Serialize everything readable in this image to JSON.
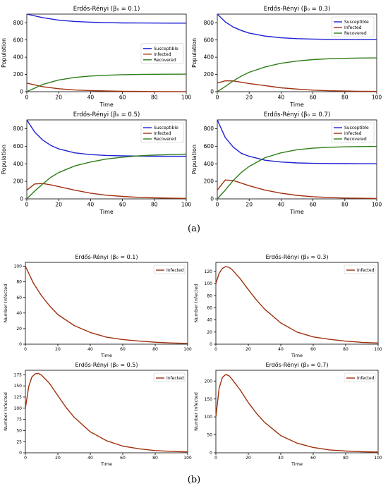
{
  "panel_labels": {
    "a": "(a)",
    "b": "(b)"
  },
  "colors": {
    "susceptible": "#1f1fd6",
    "infected": "#a0300e",
    "recovered": "#2e7d1a",
    "axis": "#000000"
  },
  "chart_data": [
    {
      "type": "line",
      "panel": "a",
      "title": "Erdős-Rényi (β₀ = 0.1)",
      "xlabel": "Time",
      "ylabel": "Population",
      "xlim": [
        0,
        100
      ],
      "ylim": [
        0,
        900
      ],
      "xticks": [
        0,
        20,
        40,
        60,
        80,
        100
      ],
      "yticks": [
        0,
        200,
        400,
        600,
        800
      ],
      "legend": "right",
      "x": [
        0,
        10,
        20,
        30,
        40,
        50,
        60,
        70,
        80,
        90,
        100
      ],
      "series": [
        {
          "name": "Susceptible",
          "color": "#1f1fd6",
          "values": [
            900,
            858,
            830,
            815,
            806,
            801,
            798,
            797,
            796,
            795,
            795
          ]
        },
        {
          "name": "Infected",
          "color": "#a0300e",
          "values": [
            100,
            58,
            34,
            20,
            12,
            8,
            5,
            3,
            2,
            1,
            1
          ]
        },
        {
          "name": "Recovered",
          "color": "#2e7d1a",
          "values": [
            0,
            84,
            136,
            165,
            182,
            191,
            197,
            200,
            202,
            203,
            204
          ]
        }
      ]
    },
    {
      "type": "line",
      "panel": "a",
      "title": "Erdős-Rényi (β₀ = 0.3)",
      "xlabel": "Time",
      "ylabel": "Population",
      "xlim": [
        0,
        100
      ],
      "ylim": [
        0,
        900
      ],
      "xticks": [
        0,
        20,
        40,
        60,
        80,
        100
      ],
      "yticks": [
        0,
        200,
        400,
        600,
        800
      ],
      "legend": "top-right",
      "x": [
        0,
        5,
        10,
        15,
        20,
        30,
        40,
        50,
        60,
        70,
        80,
        90,
        100
      ],
      "series": [
        {
          "name": "Susceptible",
          "color": "#1f1fd6",
          "values": [
            900,
            810,
            750,
            710,
            680,
            645,
            625,
            615,
            610,
            607,
            606,
            605,
            605
          ]
        },
        {
          "name": "Infected",
          "color": "#a0300e",
          "values": [
            100,
            126,
            125,
            110,
            95,
            70,
            45,
            30,
            18,
            11,
            7,
            4,
            3
          ]
        },
        {
          "name": "Recovered",
          "color": "#2e7d1a",
          "values": [
            0,
            60,
            125,
            180,
            225,
            287,
            330,
            355,
            372,
            382,
            387,
            390,
            392
          ]
        }
      ]
    },
    {
      "type": "line",
      "panel": "a",
      "title": "Erdős-Rényi (β₀ = 0.5)",
      "xlabel": "Time",
      "ylabel": "Population",
      "xlim": [
        0,
        100
      ],
      "ylim": [
        0,
        900
      ],
      "xticks": [
        0,
        20,
        40,
        60,
        80,
        100
      ],
      "yticks": [
        0,
        200,
        400,
        600,
        800
      ],
      "legend": "top-right",
      "x": [
        0,
        5,
        10,
        15,
        20,
        30,
        40,
        50,
        60,
        70,
        80,
        90,
        100
      ],
      "series": [
        {
          "name": "Susceptible",
          "color": "#1f1fd6",
          "values": [
            900,
            760,
            670,
            610,
            570,
            525,
            505,
            495,
            490,
            488,
            486,
            485,
            485
          ]
        },
        {
          "name": "Infected",
          "color": "#a0300e",
          "values": [
            100,
            170,
            175,
            160,
            140,
            100,
            65,
            42,
            28,
            18,
            12,
            8,
            6
          ]
        },
        {
          "name": "Recovered",
          "color": "#2e7d1a",
          "values": [
            0,
            90,
            170,
            245,
            300,
            375,
            420,
            455,
            475,
            490,
            500,
            505,
            510
          ]
        }
      ]
    },
    {
      "type": "line",
      "panel": "a",
      "title": "Erdős-Rényi (β₀ = 0.7)",
      "xlabel": "Time",
      "ylabel": "Population",
      "xlim": [
        0,
        100
      ],
      "ylim": [
        0,
        900
      ],
      "xticks": [
        0,
        20,
        40,
        60,
        80,
        100
      ],
      "yticks": [
        0,
        200,
        400,
        600,
        800
      ],
      "legend": "top-right",
      "x": [
        0,
        5,
        10,
        15,
        20,
        30,
        40,
        50,
        60,
        70,
        80,
        90,
        100
      ],
      "series": [
        {
          "name": "Susceptible",
          "color": "#1f1fd6",
          "values": [
            900,
            700,
            590,
            520,
            485,
            440,
            420,
            410,
            405,
            403,
            402,
            401,
            400
          ]
        },
        {
          "name": "Infected",
          "color": "#a0300e",
          "values": [
            100,
            215,
            210,
            180,
            150,
            100,
            65,
            40,
            25,
            15,
            10,
            7,
            5
          ]
        },
        {
          "name": "Recovered",
          "color": "#2e7d1a",
          "values": [
            0,
            100,
            210,
            300,
            370,
            470,
            525,
            560,
            578,
            588,
            593,
            596,
            598
          ]
        }
      ]
    },
    {
      "type": "line",
      "panel": "b",
      "title": "Erdős-Rényi (β₀ = 0.1)",
      "xlabel": "Time",
      "ylabel": "Number Infected",
      "xlim": [
        0,
        100
      ],
      "ylim": [
        0,
        105
      ],
      "xticks": [
        0,
        20,
        40,
        60,
        80,
        100
      ],
      "yticks": [
        0,
        20,
        40,
        60,
        80,
        100
      ],
      "legend": "top-right",
      "x": [
        0,
        5,
        10,
        15,
        20,
        30,
        40,
        50,
        60,
        70,
        80,
        90,
        100
      ],
      "series": [
        {
          "name": "Infected",
          "color": "#a0300e",
          "values": [
            100,
            78,
            62,
            49,
            38,
            24,
            15,
            9,
            6,
            4,
            2.5,
            1.5,
            1
          ]
        }
      ]
    },
    {
      "type": "line",
      "panel": "b",
      "title": "Erdős-Rényi (β₀ = 0.3)",
      "xlabel": "Time",
      "ylabel": "Number Infected",
      "xlim": [
        0,
        100
      ],
      "ylim": [
        0,
        135
      ],
      "xticks": [
        0,
        20,
        40,
        60,
        80,
        100
      ],
      "yticks": [
        0,
        20,
        40,
        60,
        80,
        100,
        120
      ],
      "legend": "top-right",
      "x": [
        0,
        2,
        4,
        6,
        8,
        10,
        15,
        20,
        25,
        30,
        40,
        50,
        60,
        70,
        80,
        90,
        100
      ],
      "series": [
        {
          "name": "Infected",
          "color": "#a0300e",
          "values": [
            100,
            117,
            125,
            128,
            127,
            123,
            108,
            90,
            73,
            58,
            35,
            20,
            12,
            8,
            5,
            3,
            2
          ]
        }
      ]
    },
    {
      "type": "line",
      "panel": "b",
      "title": "Erdős-Rényi (β₀ = 0.5)",
      "xlabel": "Time",
      "ylabel": "Number Infected",
      "xlim": [
        0,
        100
      ],
      "ylim": [
        0,
        185
      ],
      "xticks": [
        0,
        20,
        40,
        60,
        80,
        100
      ],
      "yticks": [
        0,
        25,
        50,
        75,
        100,
        125,
        150,
        175
      ],
      "legend": "top-right",
      "x": [
        0,
        2,
        4,
        6,
        8,
        10,
        15,
        20,
        25,
        30,
        40,
        50,
        60,
        70,
        80,
        90,
        100
      ],
      "series": [
        {
          "name": "Infected",
          "color": "#a0300e",
          "values": [
            100,
            148,
            170,
            177,
            178,
            174,
            155,
            128,
            102,
            80,
            47,
            27,
            15,
            9,
            5,
            3,
            2
          ]
        }
      ]
    },
    {
      "type": "line",
      "panel": "b",
      "title": "Erdős-Rényi (β₀ = 0.7)",
      "xlabel": "Time",
      "ylabel": "Number Infected",
      "xlim": [
        0,
        100
      ],
      "ylim": [
        0,
        230
      ],
      "xticks": [
        0,
        20,
        40,
        60,
        80,
        100
      ],
      "yticks": [
        0,
        50,
        100,
        150,
        200
      ],
      "legend": "top-right",
      "x": [
        0,
        2,
        4,
        6,
        8,
        10,
        15,
        20,
        25,
        30,
        40,
        50,
        60,
        70,
        80,
        90,
        100
      ],
      "series": [
        {
          "name": "Infected",
          "color": "#a0300e",
          "values": [
            100,
            180,
            210,
            218,
            215,
            205,
            175,
            140,
            110,
            85,
            48,
            27,
            15,
            8,
            5,
            3,
            2
          ]
        }
      ]
    }
  ]
}
